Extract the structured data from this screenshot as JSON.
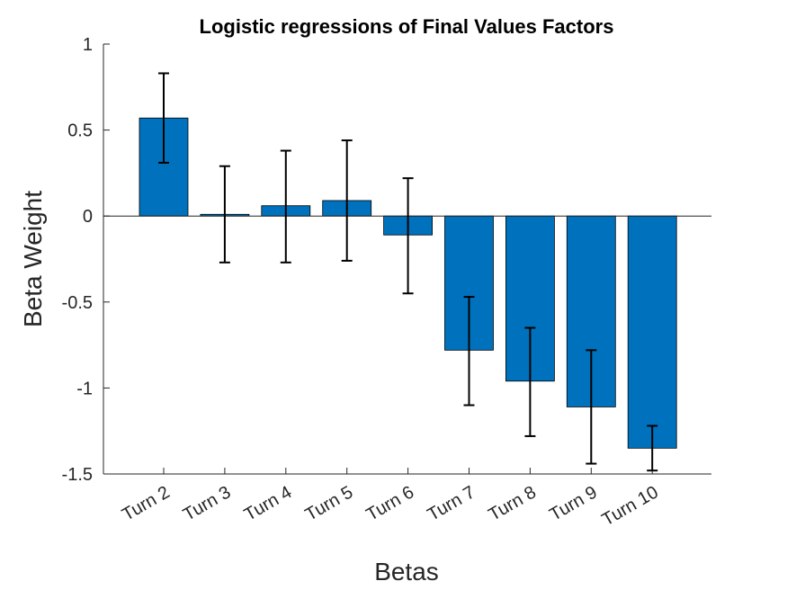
{
  "chart_data": {
    "type": "bar",
    "title": "Logistic regressions of Final Values Factors",
    "xlabel": "Betas",
    "ylabel": "Beta Weight",
    "categories": [
      "Turn 2",
      "Turn 3",
      "Turn 4",
      "Turn 5",
      "Turn 6",
      "Turn 7",
      "Turn 8",
      "Turn 9",
      "Turn 10"
    ],
    "values": [
      0.57,
      0.01,
      0.06,
      0.09,
      -0.11,
      -0.78,
      -0.96,
      -1.11,
      -1.35
    ],
    "error_low": [
      0.31,
      -0.27,
      -0.27,
      -0.26,
      -0.45,
      -1.1,
      -1.28,
      -1.44,
      -1.48
    ],
    "error_high": [
      0.83,
      0.29,
      0.38,
      0.44,
      0.22,
      -0.47,
      -0.65,
      -0.78,
      -1.22
    ],
    "ylim": [
      -1.5,
      1
    ],
    "yticks": [
      "1",
      "0.5",
      "0",
      "-0.5",
      "-1",
      "-1.5"
    ],
    "ytick_values": [
      1,
      0.5,
      0,
      -0.5,
      -1,
      -1.5
    ],
    "bar_color": "#0072BD",
    "grid": false
  }
}
